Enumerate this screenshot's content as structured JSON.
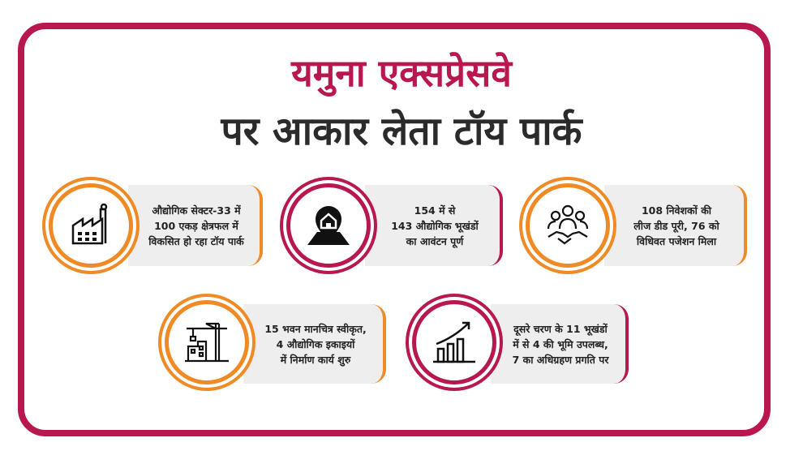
{
  "title": {
    "line1": "यमुना एक्सप्रेसवे",
    "line2": "पर आकार लेता टॉय पार्क"
  },
  "colors": {
    "crimson": "#b8174f",
    "orange": "#f08a24"
  },
  "cards": [
    {
      "icon": "factory-icon",
      "lines": [
        "औद्योगिक सेक्टर-33 में",
        "100 एकड़ क्षेत्रफल में",
        "विकसित हो रहा टॉय पार्क"
      ]
    },
    {
      "icon": "location-home-icon",
      "lines": [
        "154 में से",
        "143 औद्योगिक भूखंडों",
        "का आवंटन पूर्ण"
      ]
    },
    {
      "icon": "handshake-icon",
      "lines": [
        "108 निवेशकों की",
        "लीज डीड पूरी, 76 को",
        "विधिवत पजेशन मिला"
      ]
    },
    {
      "icon": "construction-crane-icon",
      "lines": [
        "15 भवन मानचित्र स्वीकृत,",
        "4 औद्योगिक इकाइयों",
        "में निर्माण कार्य शुरु"
      ]
    },
    {
      "icon": "growth-chart-icon",
      "lines": [
        "दूसरे चरण के 11 भूखंडों",
        "में से 4 की भूमि उपलब्ध,",
        "7 का अधिग्रहण प्रगति पर"
      ]
    }
  ]
}
